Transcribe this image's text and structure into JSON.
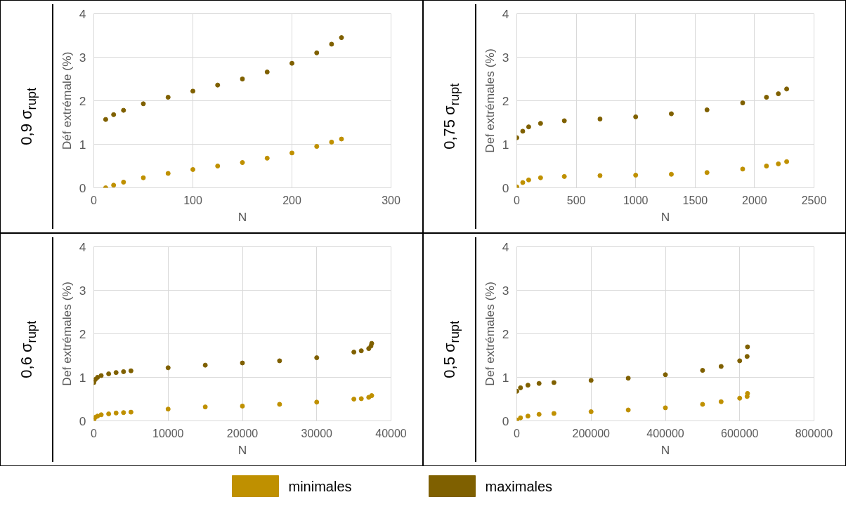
{
  "chart_data": [
    {
      "type": "scatter",
      "title": "0,9 σ$_{rupt}$",
      "xlabel": "N",
      "ylabel": "Déf extrémale (%)",
      "xlim": [
        0,
        300
      ],
      "xticks": [
        0,
        100,
        200,
        300
      ],
      "ylim": [
        0,
        4
      ],
      "yticks": [
        0,
        1,
        2,
        3,
        4
      ],
      "grid": true,
      "marker": "circle",
      "series": [
        {
          "color": "#bf9000",
          "x": [
            12,
            20,
            30,
            50,
            75,
            100,
            125,
            150,
            175,
            200,
            225,
            240,
            250
          ],
          "values": [
            0,
            0.06,
            0.13,
            0.23,
            0.33,
            0.42,
            0.5,
            0.58,
            0.68,
            0.8,
            0.95,
            1.05,
            1.12
          ]
        },
        {
          "color": "#7f6000",
          "x": [
            12,
            20,
            30,
            50,
            75,
            100,
            125,
            150,
            175,
            200,
            225,
            240,
            250
          ],
          "values": [
            1.57,
            1.68,
            1.78,
            1.93,
            2.08,
            2.22,
            2.36,
            2.5,
            2.66,
            2.86,
            3.1,
            3.3,
            3.45
          ]
        }
      ]
    },
    {
      "type": "scatter",
      "title": "0,75 σ$_{rupt}$",
      "xlabel": "N",
      "ylabel": "Def extrémales (%)",
      "xlim": [
        0,
        2500
      ],
      "xticks": [
        0,
        500,
        1000,
        1500,
        2000,
        2500
      ],
      "ylim": [
        0,
        4
      ],
      "yticks": [
        0,
        1,
        2,
        3,
        4
      ],
      "grid": true,
      "marker": "circle",
      "series": [
        {
          "color": "#bf9000",
          "x": [
            0,
            50,
            100,
            200,
            400,
            700,
            1000,
            1300,
            1600,
            1900,
            2100,
            2200,
            2270
          ],
          "values": [
            0.02,
            0.12,
            0.18,
            0.23,
            0.26,
            0.28,
            0.29,
            0.31,
            0.35,
            0.43,
            0.5,
            0.55,
            0.6
          ]
        },
        {
          "color": "#7f6000",
          "x": [
            0,
            50,
            100,
            200,
            400,
            700,
            1000,
            1300,
            1600,
            1900,
            2100,
            2200,
            2270
          ],
          "values": [
            1.15,
            1.3,
            1.4,
            1.48,
            1.54,
            1.58,
            1.63,
            1.7,
            1.79,
            1.95,
            2.08,
            2.16,
            2.27
          ]
        }
      ]
    },
    {
      "type": "scatter",
      "title": "0,6 σ$_{rupt}$",
      "xlabel": "N",
      "ylabel": "Def extrémales (%)",
      "xlim": [
        0,
        40000
      ],
      "xticks": [
        0,
        10000,
        20000,
        30000,
        40000
      ],
      "ylim": [
        0,
        4
      ],
      "yticks": [
        0,
        1,
        2,
        3,
        4
      ],
      "grid": true,
      "marker": "circle",
      "series": [
        {
          "color": "#bf9000",
          "x": [
            0,
            200,
            500,
            1000,
            2000,
            3000,
            4000,
            5000,
            10000,
            15000,
            20000,
            25000,
            30000,
            35000,
            36000,
            37000,
            37400
          ],
          "values": [
            0.02,
            0.08,
            0.11,
            0.14,
            0.16,
            0.18,
            0.19,
            0.2,
            0.27,
            0.32,
            0.34,
            0.38,
            0.43,
            0.5,
            0.51,
            0.54,
            0.58
          ]
        },
        {
          "color": "#7f6000",
          "x": [
            0,
            200,
            500,
            1000,
            2000,
            3000,
            4000,
            5000,
            10000,
            15000,
            20000,
            25000,
            30000,
            35000,
            36000,
            37000,
            37300,
            37400
          ],
          "values": [
            0.88,
            0.95,
            1.0,
            1.04,
            1.08,
            1.11,
            1.13,
            1.15,
            1.22,
            1.28,
            1.33,
            1.38,
            1.45,
            1.58,
            1.61,
            1.66,
            1.72,
            1.78
          ]
        }
      ]
    },
    {
      "type": "scatter",
      "title": "0,5 σ$_{rupt}$",
      "xlabel": "N",
      "ylabel": "Def extrémales (%)",
      "xlim": [
        0,
        800000
      ],
      "xticks": [
        0,
        200000,
        400000,
        600000,
        800000
      ],
      "ylim": [
        0,
        4
      ],
      "yticks": [
        0,
        1,
        2,
        3,
        4
      ],
      "grid": true,
      "marker": "circle",
      "legend": "bottom",
      "series": [
        {
          "name": "minimales",
          "color": "#bf9000",
          "x": [
            0,
            10000,
            30000,
            60000,
            100000,
            200000,
            300000,
            400000,
            500000,
            550000,
            600000,
            620000,
            621000
          ],
          "values": [
            0.02,
            0.07,
            0.11,
            0.15,
            0.17,
            0.21,
            0.25,
            0.3,
            0.38,
            0.44,
            0.52,
            0.56,
            0.63
          ]
        },
        {
          "name": "maximales",
          "color": "#7f6000",
          "x": [
            0,
            10000,
            30000,
            60000,
            100000,
            200000,
            300000,
            400000,
            500000,
            550000,
            600000,
            620000,
            621000
          ],
          "values": [
            0.68,
            0.76,
            0.82,
            0.86,
            0.88,
            0.93,
            0.98,
            1.06,
            1.16,
            1.25,
            1.38,
            1.48,
            1.7
          ]
        }
      ]
    }
  ]
}
